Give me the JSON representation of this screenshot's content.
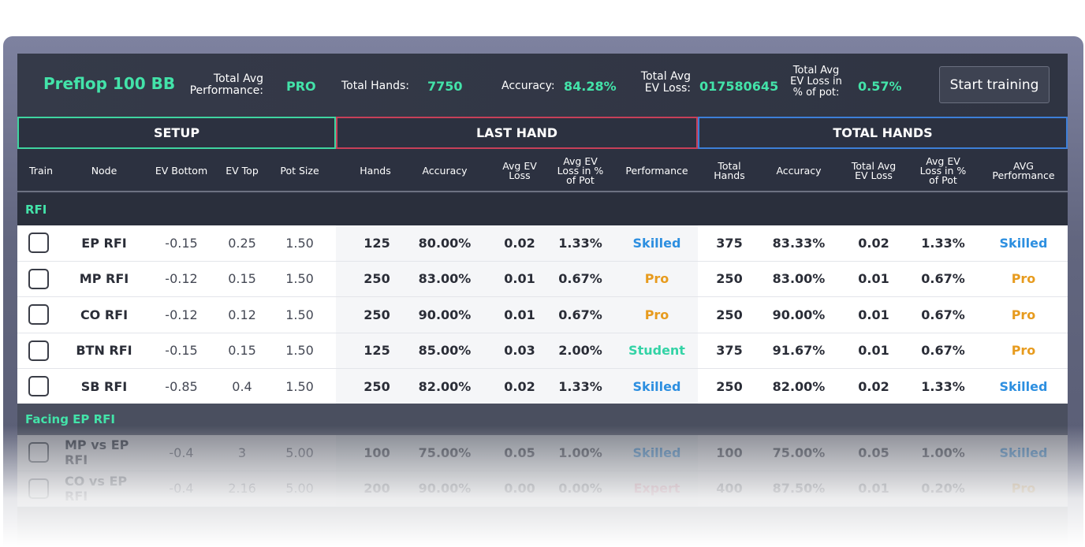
{
  "header": {
    "title": "Preflop 100 BB",
    "perf_label_1": "Total Avg",
    "perf_label_2": "Performance:",
    "perf_value": "PRO",
    "hands_label": "Total Hands:",
    "hands_value": "7750",
    "accuracy_label": "Accuracy:",
    "accuracy_value": "84.28%",
    "evloss_label_1": "Total Avg",
    "evloss_label_2": "EV Loss:",
    "evloss_value": "017580645",
    "evpot_label_1": "Total Avg",
    "evpot_label_2": "EV Loss in",
    "evpot_label_3": "% of pot:",
    "evpot_value": "0.57%",
    "start_button": "Start training"
  },
  "sections": {
    "setup": "SETUP",
    "last_hand": "LAST HAND",
    "total_hands": "TOTAL HANDS"
  },
  "columns": {
    "train": "Train",
    "node": "Node",
    "ev_bottom": "EV Bottom",
    "ev_top": "EV Top",
    "pot_size": "Pot Size",
    "hands": "Hands",
    "accuracy": "Accuracy",
    "avg_ev_loss_1": "Avg EV",
    "avg_ev_loss_2": "Loss",
    "avg_ev_pct_1": "Avg EV",
    "avg_ev_pct_2": "Loss in %",
    "avg_ev_pct_3": "of Pot",
    "performance": "Performance",
    "total_hands_1": "Total",
    "total_hands_2": "Hands",
    "t_accuracy": "Accuracy",
    "t_avg_ev_loss_1": "Total Avg",
    "t_avg_ev_loss_2": "EV Loss",
    "t_avg_ev_pct_1": "Avg EV",
    "t_avg_ev_pct_2": "Loss in %",
    "t_avg_ev_pct_3": "of Pot",
    "avg_perf_1": "AVG",
    "avg_perf_2": "Performance"
  },
  "colors": {
    "accent": "#43e3a9",
    "skilled": "#2d8fe0",
    "pro": "#e79b1e",
    "student": "#34d3a6",
    "expert": "#e46a86"
  },
  "groups": [
    {
      "name": "RFI",
      "rows": [
        {
          "node": "EP RFI",
          "ev_bottom": "-0.15",
          "ev_top": "0.25",
          "pot": "1.50",
          "hands": "125",
          "accuracy": "80.00%",
          "ev_loss": "0.02",
          "ev_pct": "1.33%",
          "perf": "Skilled",
          "t_hands": "375",
          "t_accuracy": "83.33%",
          "t_ev_loss": "0.02",
          "t_ev_pct": "1.33%",
          "t_perf": "Skilled"
        },
        {
          "node": "MP RFI",
          "ev_bottom": "-0.12",
          "ev_top": "0.15",
          "pot": "1.50",
          "hands": "250",
          "accuracy": "83.00%",
          "ev_loss": "0.01",
          "ev_pct": "0.67%",
          "perf": "Pro",
          "t_hands": "250",
          "t_accuracy": "83.00%",
          "t_ev_loss": "0.01",
          "t_ev_pct": "0.67%",
          "t_perf": "Pro"
        },
        {
          "node": "CO RFI",
          "ev_bottom": "-0.12",
          "ev_top": "0.12",
          "pot": "1.50",
          "hands": "250",
          "accuracy": "90.00%",
          "ev_loss": "0.01",
          "ev_pct": "0.67%",
          "perf": "Pro",
          "t_hands": "250",
          "t_accuracy": "90.00%",
          "t_ev_loss": "0.01",
          "t_ev_pct": "0.67%",
          "t_perf": "Pro"
        },
        {
          "node": "BTN RFI",
          "ev_bottom": "-0.15",
          "ev_top": "0.15",
          "pot": "1.50",
          "hands": "125",
          "accuracy": "85.00%",
          "ev_loss": "0.03",
          "ev_pct": "2.00%",
          "perf": "Student",
          "t_hands": "375",
          "t_accuracy": "91.67%",
          "t_ev_loss": "0.01",
          "t_ev_pct": "0.67%",
          "t_perf": "Pro"
        },
        {
          "node": "SB RFI",
          "ev_bottom": "-0.85",
          "ev_top": "0.4",
          "pot": "1.50",
          "hands": "250",
          "accuracy": "82.00%",
          "ev_loss": "0.02",
          "ev_pct": "1.33%",
          "perf": "Skilled",
          "t_hands": "250",
          "t_accuracy": "82.00%",
          "t_ev_loss": "0.02",
          "t_ev_pct": "1.33%",
          "t_perf": "Skilled"
        }
      ]
    },
    {
      "name": "Facing EP RFI",
      "rows": [
        {
          "node": "MP vs EP RFI",
          "ev_bottom": "-0.4",
          "ev_top": "3",
          "pot": "5.00",
          "hands": "100",
          "accuracy": "75.00%",
          "ev_loss": "0.05",
          "ev_pct": "1.00%",
          "perf": "Skilled",
          "t_hands": "100",
          "t_accuracy": "75.00%",
          "t_ev_loss": "0.05",
          "t_ev_pct": "1.00%",
          "t_perf": "Skilled"
        },
        {
          "node": "CO vs EP RFI",
          "ev_bottom": "-0.4",
          "ev_top": "2.16",
          "pot": "5.00",
          "hands": "200",
          "accuracy": "90.00%",
          "ev_loss": "0.00",
          "ev_pct": "0.00%",
          "perf": "Expert",
          "t_hands": "400",
          "t_accuracy": "87.50%",
          "t_ev_loss": "0.01",
          "t_ev_pct": "0.20%",
          "t_perf": "Pro"
        }
      ]
    }
  ]
}
